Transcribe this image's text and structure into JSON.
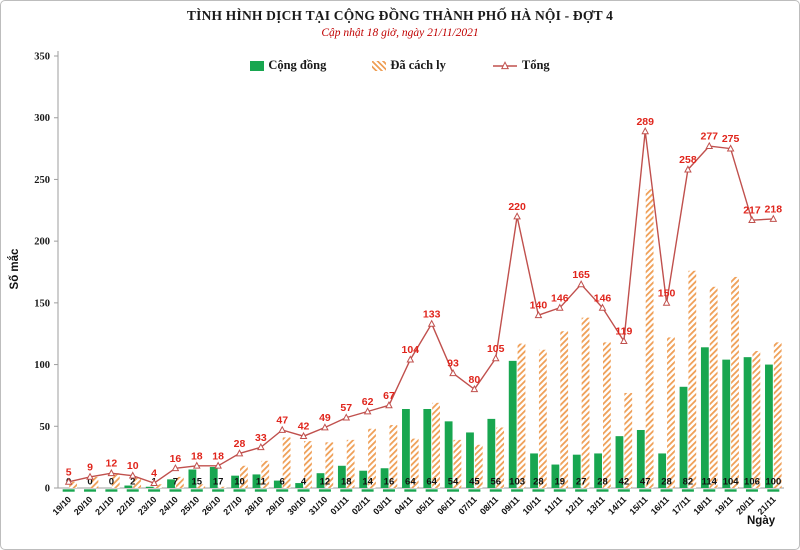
{
  "chart_data": {
    "type": "bar+line",
    "title": "TÌNH HÌNH DỊCH TẠI CỘNG ĐỒNG THÀNH PHỐ HÀ NỘI - ĐỢT 4",
    "subtitle": "Cập nhật 18 giờ, ngày 21/11/2021",
    "ylabel": "Số mắc",
    "xlabel": "Ngày",
    "ylim": [
      0,
      350
    ],
    "ytick_step": 50,
    "grid": false,
    "legend_position": "top",
    "categories": [
      "19/10",
      "20/10",
      "21/10",
      "22/10",
      "23/10",
      "24/10",
      "25/10",
      "26/10",
      "27/10",
      "28/10",
      "29/10",
      "30/10",
      "31/10",
      "01/11",
      "02/11",
      "03/11",
      "04/11",
      "05/11",
      "06/11",
      "07/11",
      "08/11",
      "09/11",
      "10/11",
      "11/11",
      "12/11",
      "13/11",
      "14/11",
      "15/11",
      "16/11",
      "17/11",
      "18/11",
      "19/11",
      "20/11",
      "21/11"
    ],
    "series": [
      {
        "name": "Cộng đồng",
        "type": "bar",
        "style": "solid",
        "values": [
          0,
          0,
          0,
          2,
          1,
          7,
          15,
          17,
          10,
          11,
          6,
          4,
          12,
          18,
          14,
          16,
          64,
          64,
          54,
          45,
          56,
          103,
          28,
          19,
          27,
          28,
          42,
          47,
          28,
          82,
          114,
          104,
          106,
          100
        ]
      },
      {
        "name": "Đã cách ly",
        "type": "bar",
        "style": "hatched",
        "values": [
          5,
          9,
          12,
          8,
          3,
          9,
          3,
          1,
          18,
          22,
          41,
          38,
          37,
          39,
          48,
          51,
          40,
          69,
          39,
          35,
          49,
          117,
          112,
          127,
          138,
          118,
          77,
          242,
          122,
          176,
          163,
          171,
          111,
          118
        ]
      },
      {
        "name": "Tổng",
        "type": "line",
        "marker": "triangle",
        "values": [
          5,
          9,
          12,
          10,
          4,
          16,
          18,
          18,
          28,
          33,
          47,
          42,
          49,
          57,
          62,
          67,
          104,
          133,
          93,
          80,
          105,
          220,
          140,
          146,
          165,
          146,
          119,
          289,
          150,
          258,
          277,
          275,
          217,
          218
        ]
      }
    ],
    "colors": {
      "cong_dong": "#18a650",
      "da_cach_ly": "#efa058",
      "tong_line": "#c0504d",
      "label_red": "#e0251c",
      "axis": "#9e9e9e"
    }
  }
}
